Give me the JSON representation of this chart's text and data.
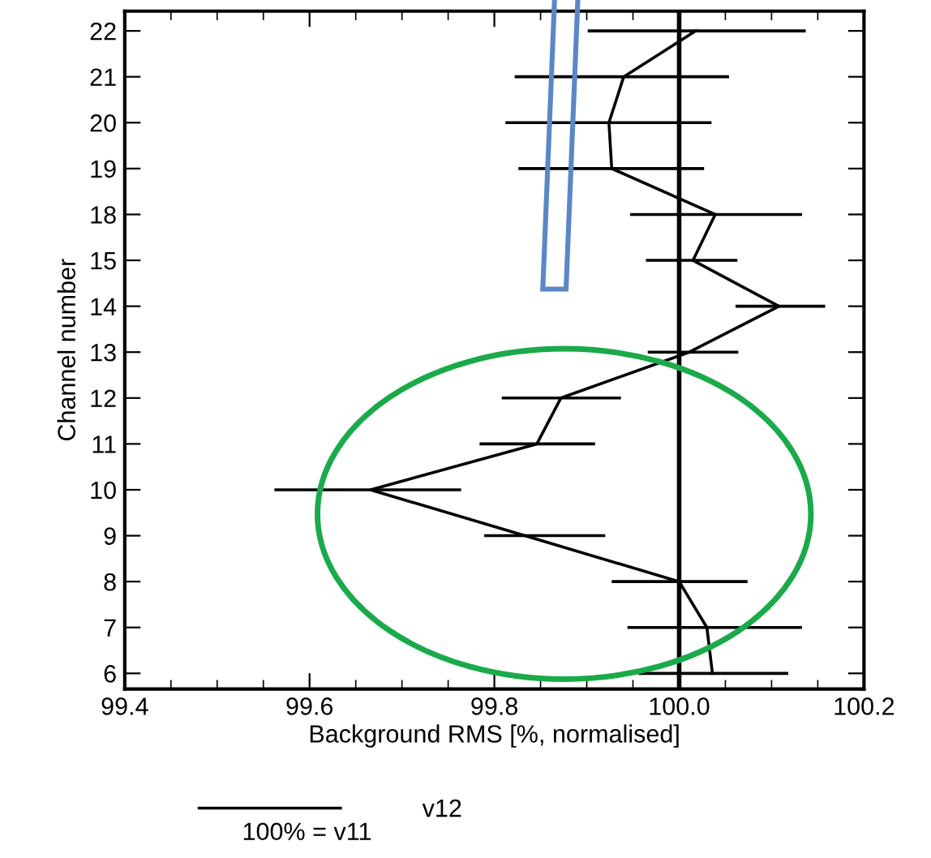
{
  "chart_data": {
    "type": "line",
    "orientation": "horizontal",
    "categories": [
      "22",
      "21",
      "20",
      "19",
      "18",
      "15",
      "14",
      "13",
      "12",
      "11",
      "10",
      "9",
      "8",
      "7",
      "6"
    ],
    "series": [
      {
        "name": "v12",
        "color": "#000000",
        "values": [
          100.018,
          99.94,
          99.924,
          99.927,
          100.039,
          100.015,
          100.108,
          100.011,
          99.872,
          99.846,
          99.666,
          99.833,
          100.0,
          100.03,
          100.036
        ],
        "errors": [
          [
            99.901,
            100.137
          ],
          [
            99.822,
            100.054
          ],
          [
            99.812,
            100.035
          ],
          [
            99.826,
            100.027
          ],
          [
            99.947,
            100.133
          ],
          [
            99.964,
            100.063
          ],
          [
            100.061,
            100.158
          ],
          [
            99.966,
            100.064
          ],
          [
            99.808,
            99.937
          ],
          [
            99.784,
            99.909
          ],
          [
            99.562,
            99.764
          ],
          [
            99.789,
            99.92
          ],
          [
            99.927,
            100.074
          ],
          [
            99.944,
            100.133
          ],
          [
            99.956,
            100.118
          ]
        ]
      }
    ],
    "xlim": [
      99.4,
      100.2
    ],
    "xticks": [
      {
        "value": 99.4,
        "label": "99.4"
      },
      {
        "value": 99.6,
        "label": "99.6"
      },
      {
        "value": 99.8,
        "label": "99.8"
      },
      {
        "value": 100.0,
        "label": "100.0"
      },
      {
        "value": 100.2,
        "label": "100.2"
      }
    ],
    "xlabel": "Background RMS [%, normalised]",
    "ylabel": "Channel number",
    "ref_lines": [
      {
        "axis": "x",
        "value": 100.0,
        "color": "#000000"
      }
    ],
    "legend": "bottom",
    "grid": false,
    "marker": "none",
    "line_style": "solid",
    "annotations": [
      "100% = v11"
    ]
  }
}
